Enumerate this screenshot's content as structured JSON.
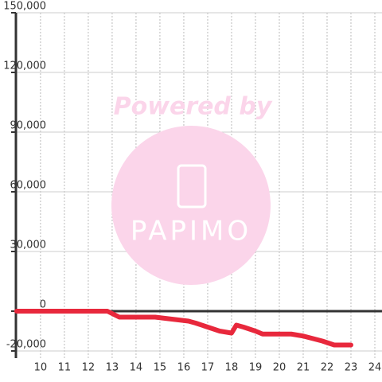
{
  "chart_data": {
    "type": "line",
    "annotations": [
      "Powered by",
      "PAPIMO"
    ],
    "x": [
      9,
      12.8,
      13.3,
      14.8,
      15.5,
      16.2,
      16.5,
      17,
      17.5,
      18,
      18.2,
      18.5,
      19,
      19.3,
      20.5,
      21,
      21.8,
      22.3,
      23
    ],
    "series": [
      {
        "color": "#e8283c",
        "values": [
          0,
          0,
          -3000,
          -3000,
          -4000,
          -5000,
          -6000,
          -8000,
          -10000,
          -11000,
          -7000,
          -8000,
          -10000,
          -11500,
          -11500,
          -12500,
          -15000,
          -17000,
          -17000
        ]
      }
    ],
    "xlim": [
      8.97,
      24.3
    ],
    "xticks": [
      10,
      11,
      12,
      13,
      14,
      15,
      16,
      17,
      18,
      19,
      20,
      21,
      22,
      23,
      24
    ],
    "ylim": [
      -20000,
      150000
    ],
    "yticks": [
      {
        "value": -20000,
        "label": "-20,000"
      },
      0,
      {
        "value": 30000,
        "label": "30,000"
      },
      {
        "value": 60000,
        "label": "60,000"
      },
      {
        "value": 90000,
        "label": "90,000"
      },
      {
        "value": 120000,
        "label": "120,000"
      },
      {
        "value": 150000,
        "label": "150,000"
      }
    ],
    "grid": true
  }
}
